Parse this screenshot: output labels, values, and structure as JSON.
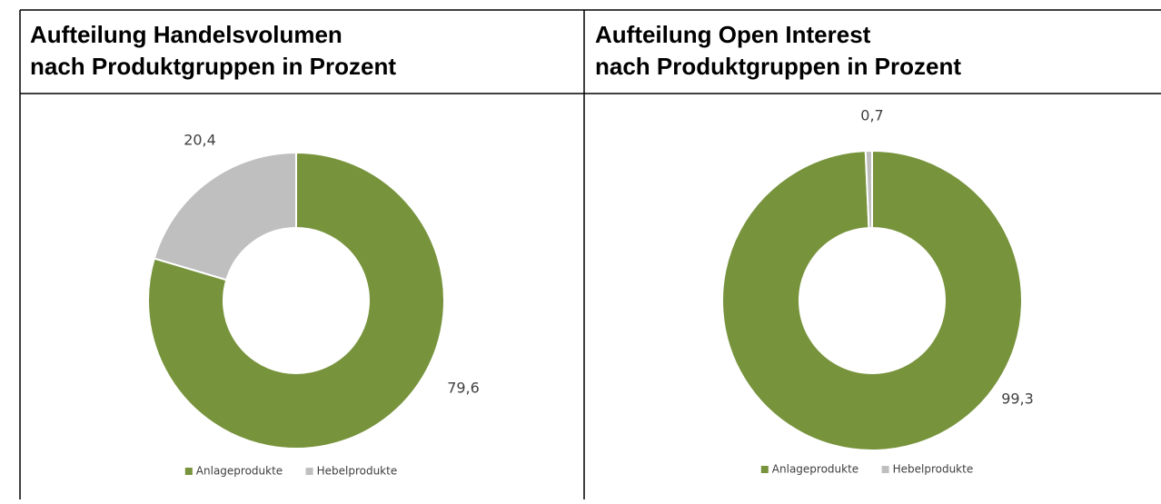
{
  "chart_data": [
    {
      "type": "donut",
      "title": [
        "Aufteilung Handelsvolumen",
        "nach Produktgruppen in Prozent"
      ],
      "categories": [
        "Anlageprodukte",
        "Hebelprodukte"
      ],
      "values": [
        79.6,
        20.4
      ],
      "value_labels": [
        "79,6",
        "20,4"
      ],
      "colors": [
        "#77933c",
        "#bfbfbf"
      ]
    },
    {
      "type": "donut",
      "title": [
        "Aufteilung Open Interest",
        "nach Produktgruppen in Prozent"
      ],
      "categories": [
        "Anlageprodukte",
        "Hebelprodukte"
      ],
      "values": [
        99.3,
        0.7
      ],
      "value_labels": [
        "99,3",
        "0,7"
      ],
      "colors": [
        "#77933c",
        "#bfbfbf"
      ]
    }
  ]
}
